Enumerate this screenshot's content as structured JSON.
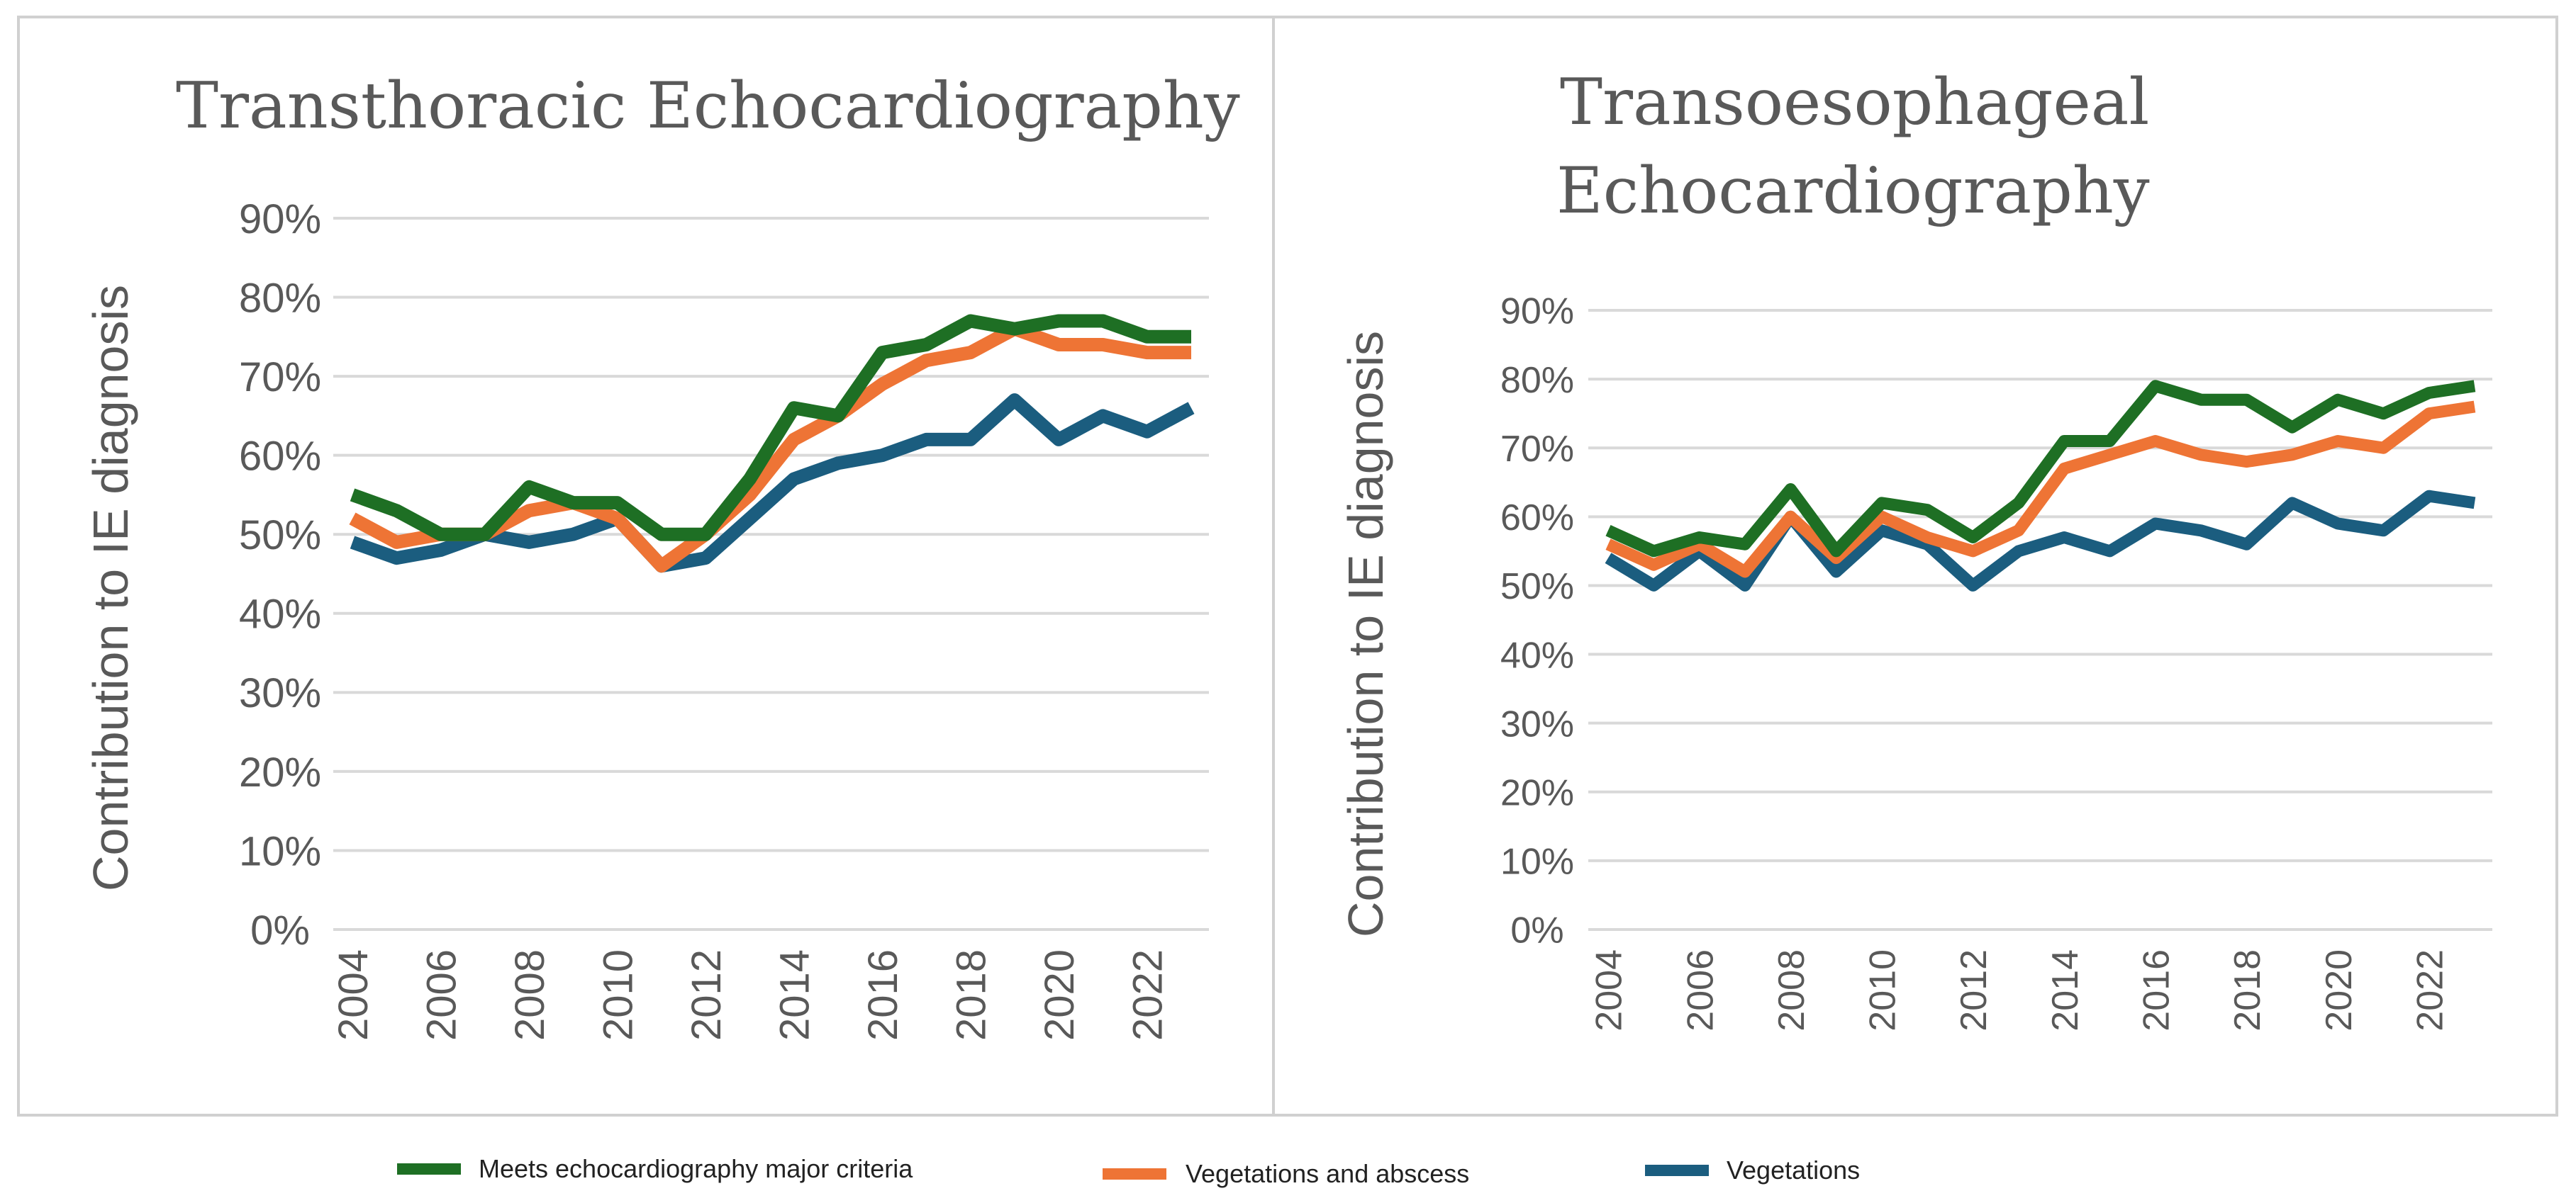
{
  "series_meta": [
    {
      "key": "major",
      "name": "Meets echocardiography major criteria",
      "color": "#1e6f24"
    },
    {
      "key": "veg_abscess",
      "name": "Vegetations and abscess",
      "color": "#ee7435"
    },
    {
      "key": "veg",
      "name": "Vegetations",
      "color": "#1b5d7f"
    }
  ],
  "chart_data": [
    {
      "type": "line",
      "title": "Transthoracic Echocardiography",
      "xlabel": "",
      "ylabel": "Contribution to IE diagnosis",
      "ylim": [
        0,
        90
      ],
      "yticks": [
        "0%",
        "10%",
        "20%",
        "30%",
        "40%",
        "50%",
        "60%",
        "70%",
        "80%",
        "90%"
      ],
      "xticks": [
        "2004",
        "2006",
        "2008",
        "2010",
        "2012",
        "2014",
        "2016",
        "2018",
        "2020",
        "2022"
      ],
      "x": [
        2004,
        2005,
        2006,
        2007,
        2008,
        2009,
        2010,
        2011,
        2012,
        2013,
        2014,
        2015,
        2016,
        2017,
        2018,
        2019,
        2020,
        2021,
        2022,
        2023
      ],
      "series": [
        {
          "name": "Meets echocardiography major criteria",
          "values": [
            55,
            53,
            50,
            50,
            56,
            54,
            54,
            50,
            50,
            57,
            66,
            65,
            73,
            74,
            77,
            76,
            77,
            77,
            75,
            75
          ]
        },
        {
          "name": "Vegetations and abscess",
          "values": [
            52,
            49,
            50,
            50,
            53,
            54,
            52,
            46,
            50,
            55,
            62,
            65,
            69,
            72,
            73,
            76,
            74,
            74,
            73,
            73
          ]
        },
        {
          "name": "Vegetations",
          "values": [
            49,
            47,
            48,
            50,
            49,
            50,
            52,
            46,
            47,
            52,
            57,
            59,
            60,
            62,
            62,
            67,
            62,
            65,
            63,
            66
          ]
        }
      ]
    },
    {
      "type": "line",
      "title_lines": [
        "Transoesophageal",
        "Echocardiography"
      ],
      "xlabel": "",
      "ylabel": "Contribution to IE diagnosis",
      "ylim": [
        0,
        90
      ],
      "yticks": [
        "0%",
        "10%",
        "20%",
        "30%",
        "40%",
        "50%",
        "60%",
        "70%",
        "80%",
        "90%"
      ],
      "xticks": [
        "2004",
        "2006",
        "2008",
        "2010",
        "2012",
        "2014",
        "2016",
        "2018",
        "2020",
        "2022"
      ],
      "x": [
        2004,
        2005,
        2006,
        2007,
        2008,
        2009,
        2010,
        2011,
        2012,
        2013,
        2014,
        2015,
        2016,
        2017,
        2018,
        2019,
        2020,
        2021,
        2022,
        2023
      ],
      "series": [
        {
          "name": "Meets echocardiography major criteria",
          "values": [
            58,
            55,
            57,
            56,
            64,
            55,
            62,
            61,
            57,
            62,
            71,
            71,
            79,
            77,
            77,
            73,
            77,
            75,
            78,
            79
          ]
        },
        {
          "name": "Vegetations and abscess",
          "values": [
            56,
            53,
            56,
            52,
            60,
            54,
            60,
            57,
            55,
            58,
            67,
            69,
            71,
            69,
            68,
            69,
            71,
            70,
            75,
            76
          ]
        },
        {
          "name": "Vegetations",
          "values": [
            54,
            50,
            55,
            50,
            60,
            52,
            58,
            56,
            50,
            55,
            57,
            55,
            59,
            58,
            56,
            62,
            59,
            58,
            63,
            62
          ]
        }
      ]
    }
  ]
}
